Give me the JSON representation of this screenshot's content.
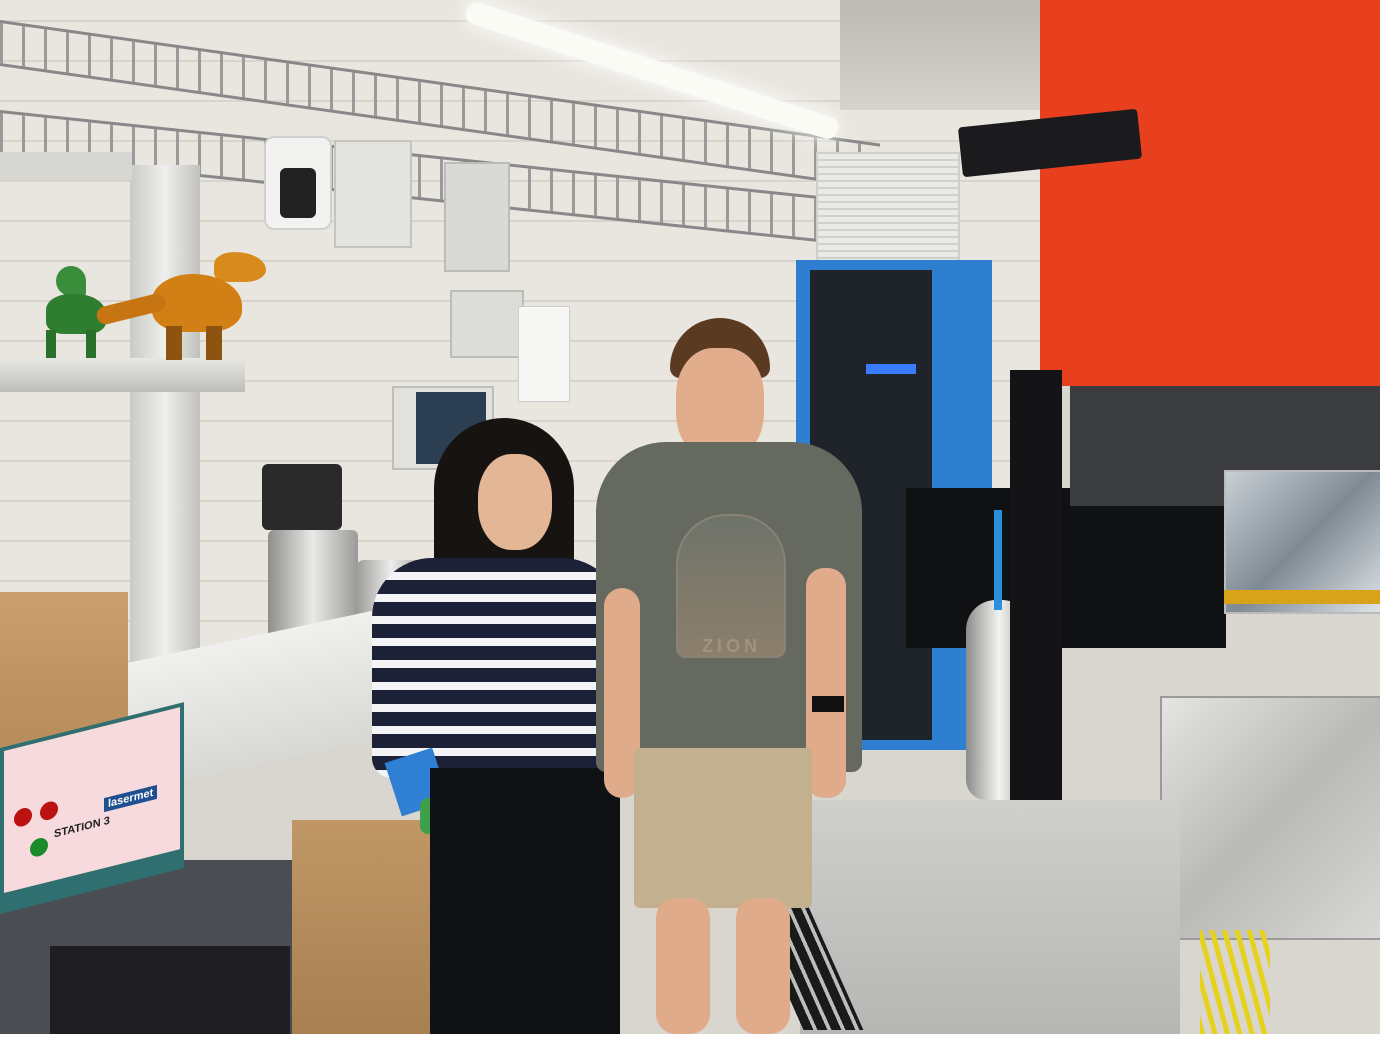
{
  "photo": {
    "station_panel": {
      "text": "STATION 3",
      "brand": "lasermet"
    },
    "tshirt_print": "ZION",
    "colors": {
      "red_panel": "#e8401e",
      "blue_rack": "#2f7fd0",
      "wall": "#ece9e2",
      "floor": "#c7c4bd"
    }
  }
}
